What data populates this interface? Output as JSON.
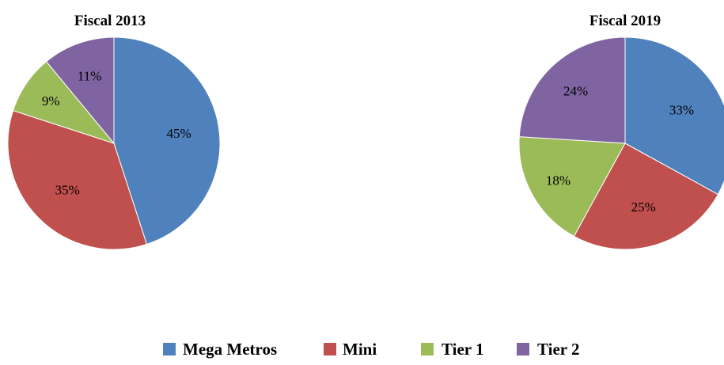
{
  "chart_data": [
    {
      "type": "pie",
      "title": "Fiscal 2013",
      "categories": [
        "Mega Metros",
        "Mini",
        "Tier 1",
        "Tier 2"
      ],
      "values": [
        45,
        35,
        9,
        11
      ],
      "labels": [
        "45%",
        "35%",
        "9%",
        "11%"
      ],
      "colors": [
        "#4F81BD",
        "#C0504D",
        "#9BBB59",
        "#8064A2"
      ]
    },
    {
      "type": "pie",
      "title": "Fiscal 2019",
      "categories": [
        "Mega Metros",
        "Mini",
        "Tier 1",
        "Tier 2"
      ],
      "values": [
        33,
        25,
        18,
        24
      ],
      "labels": [
        "33%",
        "25%",
        "18%",
        "24%"
      ],
      "colors": [
        "#4F81BD",
        "#C0504D",
        "#9BBB59",
        "#8064A2"
      ]
    }
  ],
  "legend": {
    "placement": "bottom",
    "items": [
      {
        "label": "Mega Metros",
        "color": "#4F81BD"
      },
      {
        "label": "Mini",
        "color": "#C0504D"
      },
      {
        "label": "Tier 1",
        "color": "#9BBB59"
      },
      {
        "label": "Tier 2",
        "color": "#8064A2"
      }
    ]
  }
}
